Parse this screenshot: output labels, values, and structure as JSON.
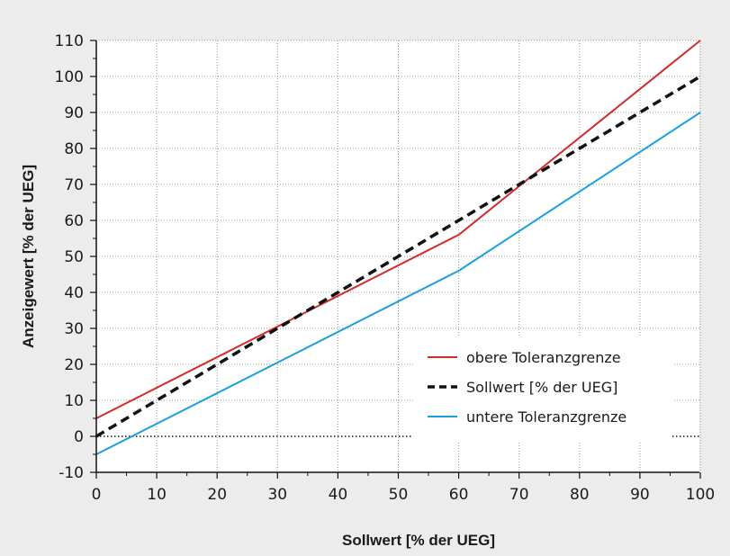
{
  "chart_data": {
    "type": "line",
    "xlabel": "Sollwert [% der UEG]",
    "ylabel": "Anzeigewert [% der UEG]",
    "xlim": [
      0,
      100
    ],
    "ylim": [
      -10,
      110
    ],
    "x_ticks": [
      0,
      10,
      20,
      30,
      40,
      50,
      60,
      70,
      80,
      90,
      100
    ],
    "y_ticks": [
      -10,
      0,
      10,
      20,
      30,
      40,
      50,
      60,
      70,
      80,
      90,
      100,
      110
    ],
    "grid": true,
    "legend_position": "bottom-right",
    "series": [
      {
        "name": "obere Toleranzgrenze",
        "color": "#d42a2a",
        "style": "solid",
        "x": [
          0,
          60,
          100
        ],
        "y": [
          5,
          56,
          110
        ]
      },
      {
        "name": "Sollwert [% der UEG]",
        "color": "#111111",
        "style": "dashed",
        "x": [
          0,
          100
        ],
        "y": [
          0,
          100
        ]
      },
      {
        "name": "untere Toleranzgrenze",
        "color": "#1aa0dc",
        "style": "solid",
        "x": [
          0,
          60,
          100
        ],
        "y": [
          -5,
          46,
          90
        ]
      }
    ]
  }
}
